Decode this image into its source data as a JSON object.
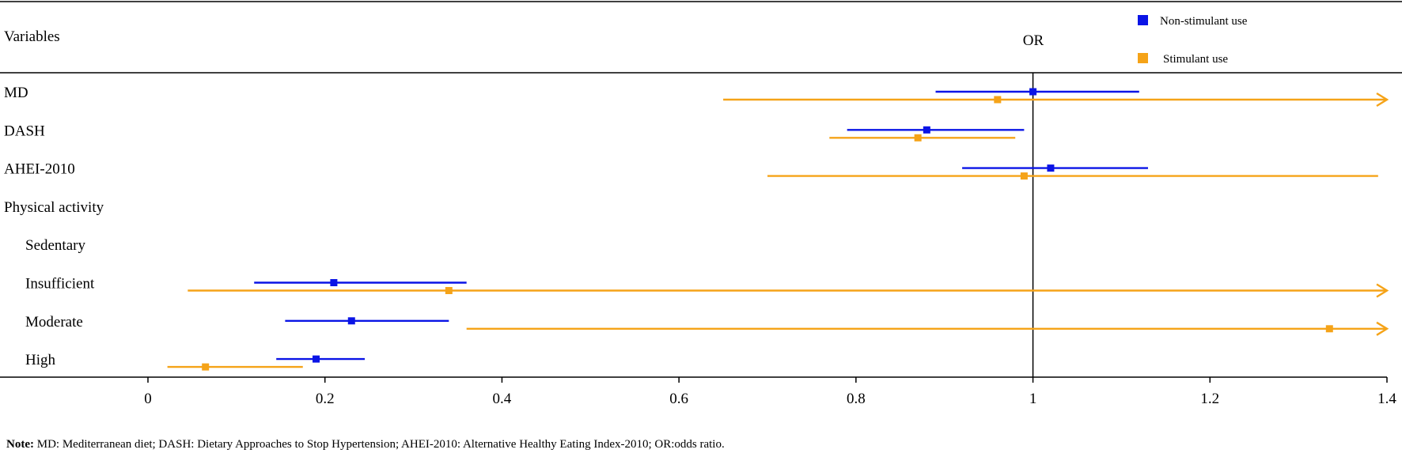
{
  "header": {
    "variables_label": "Variables",
    "or_label": "OR"
  },
  "note": {
    "label": "Note:",
    "text": " MD: Mediterranean diet; DASH: Dietary Approaches to Stop Hypertension; AHEI-2010: Alternative Healthy Eating Index-2010; OR:odds ratio."
  },
  "colors": {
    "non_stimulant": "#0a14e6",
    "stimulant": "#f5a318"
  },
  "chart_data": {
    "type": "forest",
    "xlabel": "",
    "ylabel": "Variables",
    "xlim": [
      -0.12,
      1.4
    ],
    "reference_line": 1,
    "x_ticks": [
      0,
      0.2,
      0.4,
      0.6,
      0.8,
      1,
      1.2,
      1.4
    ],
    "x_tick_labels": [
      "0",
      "0.2",
      "0.4",
      "0.6",
      "0.8",
      "1",
      "1.2",
      "1.4"
    ],
    "legend": {
      "placement": "top-right",
      "entries": [
        "Non-stimulant use",
        "Stimulant use"
      ]
    },
    "rows": [
      {
        "label": "MD",
        "indent": false
      },
      {
        "label": "DASH",
        "indent": false
      },
      {
        "label": "AHEI-2010",
        "indent": false
      },
      {
        "label": "Physical activity",
        "indent": false
      },
      {
        "label": "Sedentary",
        "indent": true
      },
      {
        "label": "Insufficient",
        "indent": true
      },
      {
        "label": "Moderate",
        "indent": true
      },
      {
        "label": "High",
        "indent": true
      }
    ],
    "series": [
      {
        "name": "Non-stimulant use",
        "points": [
          {
            "row": 0,
            "or": 1.0,
            "lower": 0.89,
            "upper": 1.12,
            "arrow": false
          },
          {
            "row": 1,
            "or": 0.88,
            "lower": 0.79,
            "upper": 0.99,
            "arrow": false
          },
          {
            "row": 2,
            "or": 1.02,
            "lower": 0.92,
            "upper": 1.13,
            "arrow": false
          },
          {
            "row": 5,
            "or": 0.21,
            "lower": 0.12,
            "upper": 0.36,
            "arrow": false
          },
          {
            "row": 6,
            "or": 0.23,
            "lower": 0.155,
            "upper": 0.34,
            "arrow": false
          },
          {
            "row": 7,
            "or": 0.19,
            "lower": 0.145,
            "upper": 0.245,
            "arrow": false
          }
        ]
      },
      {
        "name": "Stimulant use",
        "points": [
          {
            "row": 0,
            "or": 0.96,
            "lower": 0.65,
            "upper": 1.4,
            "arrow": true
          },
          {
            "row": 1,
            "or": 0.87,
            "lower": 0.77,
            "upper": 0.98,
            "arrow": false
          },
          {
            "row": 2,
            "or": 0.99,
            "lower": 0.7,
            "upper": 1.39,
            "arrow": false
          },
          {
            "row": 5,
            "or": 0.34,
            "lower": 0.045,
            "upper": 1.4,
            "arrow": true
          },
          {
            "row": 6,
            "or": 1.335,
            "lower": 0.36,
            "upper": 1.4,
            "arrow": true
          },
          {
            "row": 7,
            "or": 0.065,
            "lower": 0.022,
            "upper": 0.175,
            "arrow": false
          }
        ]
      }
    ]
  }
}
